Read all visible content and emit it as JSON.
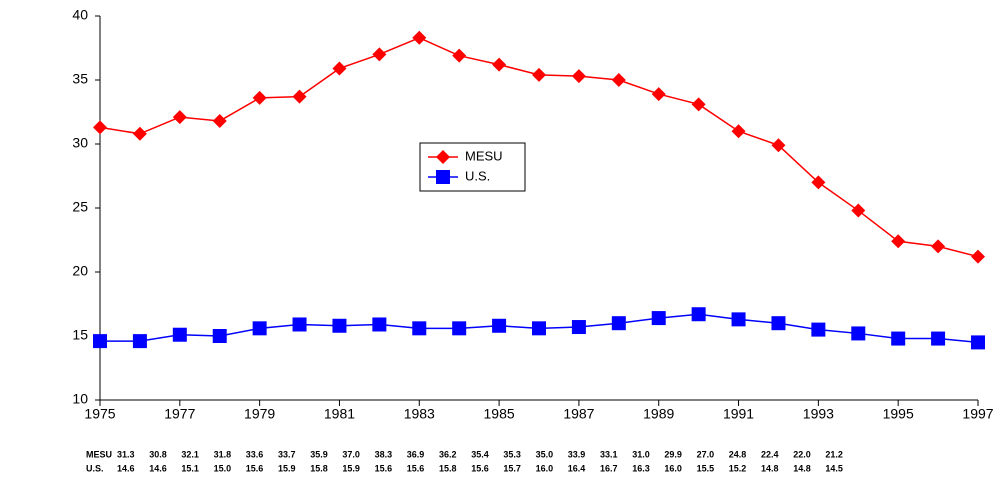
{
  "chart_data": {
    "type": "line",
    "x": [
      1975,
      1976,
      1977,
      1978,
      1979,
      1980,
      1981,
      1982,
      1983,
      1984,
      1985,
      1986,
      1987,
      1988,
      1989,
      1990,
      1991,
      1992,
      1993,
      1994,
      1995,
      1996,
      1997
    ],
    "series": [
      {
        "name": "MESU",
        "color": "#ff0000",
        "marker": "diamond",
        "values": [
          31.3,
          30.8,
          32.1,
          31.8,
          33.6,
          33.7,
          35.9,
          37.0,
          38.3,
          36.9,
          36.2,
          35.4,
          35.3,
          35.0,
          33.9,
          33.1,
          31.0,
          29.9,
          27.0,
          24.8,
          22.4,
          22.0,
          21.2
        ],
        "value_labels": [
          "31.3",
          "30.8",
          "32.1",
          "31.8",
          "33.6",
          "33.7",
          "35.9",
          "37.0",
          "38.3",
          "36.9",
          "36.2",
          "35.4",
          "35.3",
          "35.0",
          "33.9",
          "33.1",
          "31.0",
          "29.9",
          "27.0",
          "24.8",
          "22.4",
          "22.0",
          "21.2"
        ]
      },
      {
        "name": "U.S.",
        "color": "#0000ff",
        "marker": "square",
        "values": [
          14.6,
          14.6,
          15.1,
          15.0,
          15.6,
          15.9,
          15.8,
          15.9,
          15.6,
          15.6,
          15.8,
          15.6,
          15.7,
          16.0,
          16.4,
          16.7,
          16.3,
          16.0,
          15.5,
          15.2,
          14.8,
          14.8,
          14.5
        ],
        "value_labels": [
          "14.6",
          "14.6",
          "15.1",
          "15.0",
          "15.6",
          "15.9",
          "15.8",
          "15.9",
          "15.6",
          "15.6",
          "15.8",
          "15.6",
          "15.7",
          "16.0",
          "16.4",
          "16.7",
          "16.3",
          "16.0",
          "15.5",
          "15.2",
          "14.8",
          "14.8",
          "14.5"
        ]
      }
    ],
    "xlim": [
      1975,
      1997
    ],
    "xticks": [
      1975,
      1977,
      1979,
      1981,
      1983,
      1985,
      1987,
      1989,
      1991,
      1993,
      1995,
      1997
    ],
    "ylim": [
      10,
      40
    ],
    "yticks": [
      10,
      15,
      20,
      25,
      30,
      35,
      40
    ]
  }
}
